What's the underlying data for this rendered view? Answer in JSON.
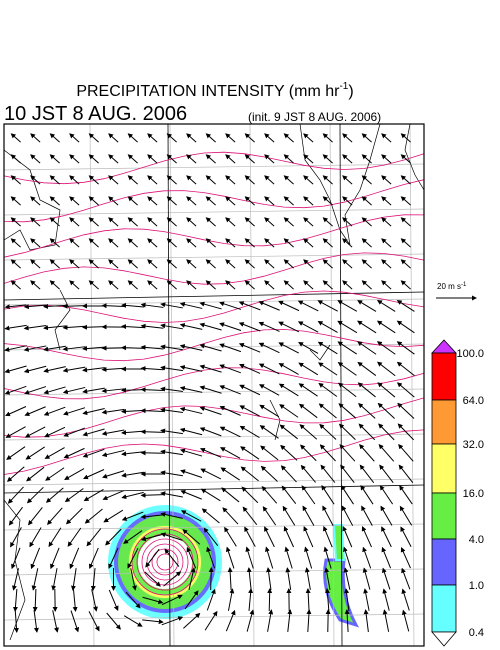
{
  "header": {
    "title": "PRECIPITATION INTENSITY (mm hr",
    "title_sup": "-1",
    "title_end": ")",
    "valid_time": "10 JST 8 AUG. 2006",
    "init_time": "(init. 9 JST 8 AUG. 2006)"
  },
  "vector_legend": {
    "label": "20 m s",
    "label_sup": "-1"
  },
  "colorbar": {
    "labels": [
      "100.0",
      "64.0",
      "32.0",
      "16.0",
      "4.0",
      "1.0",
      "0.4"
    ],
    "colors": [
      "#ff0000",
      "#ff9933",
      "#ffff66",
      "#66ee44",
      "#6666ff",
      "#66ffff"
    ],
    "over_color": "#cc33ff",
    "under_color": "#ffffff"
  }
}
